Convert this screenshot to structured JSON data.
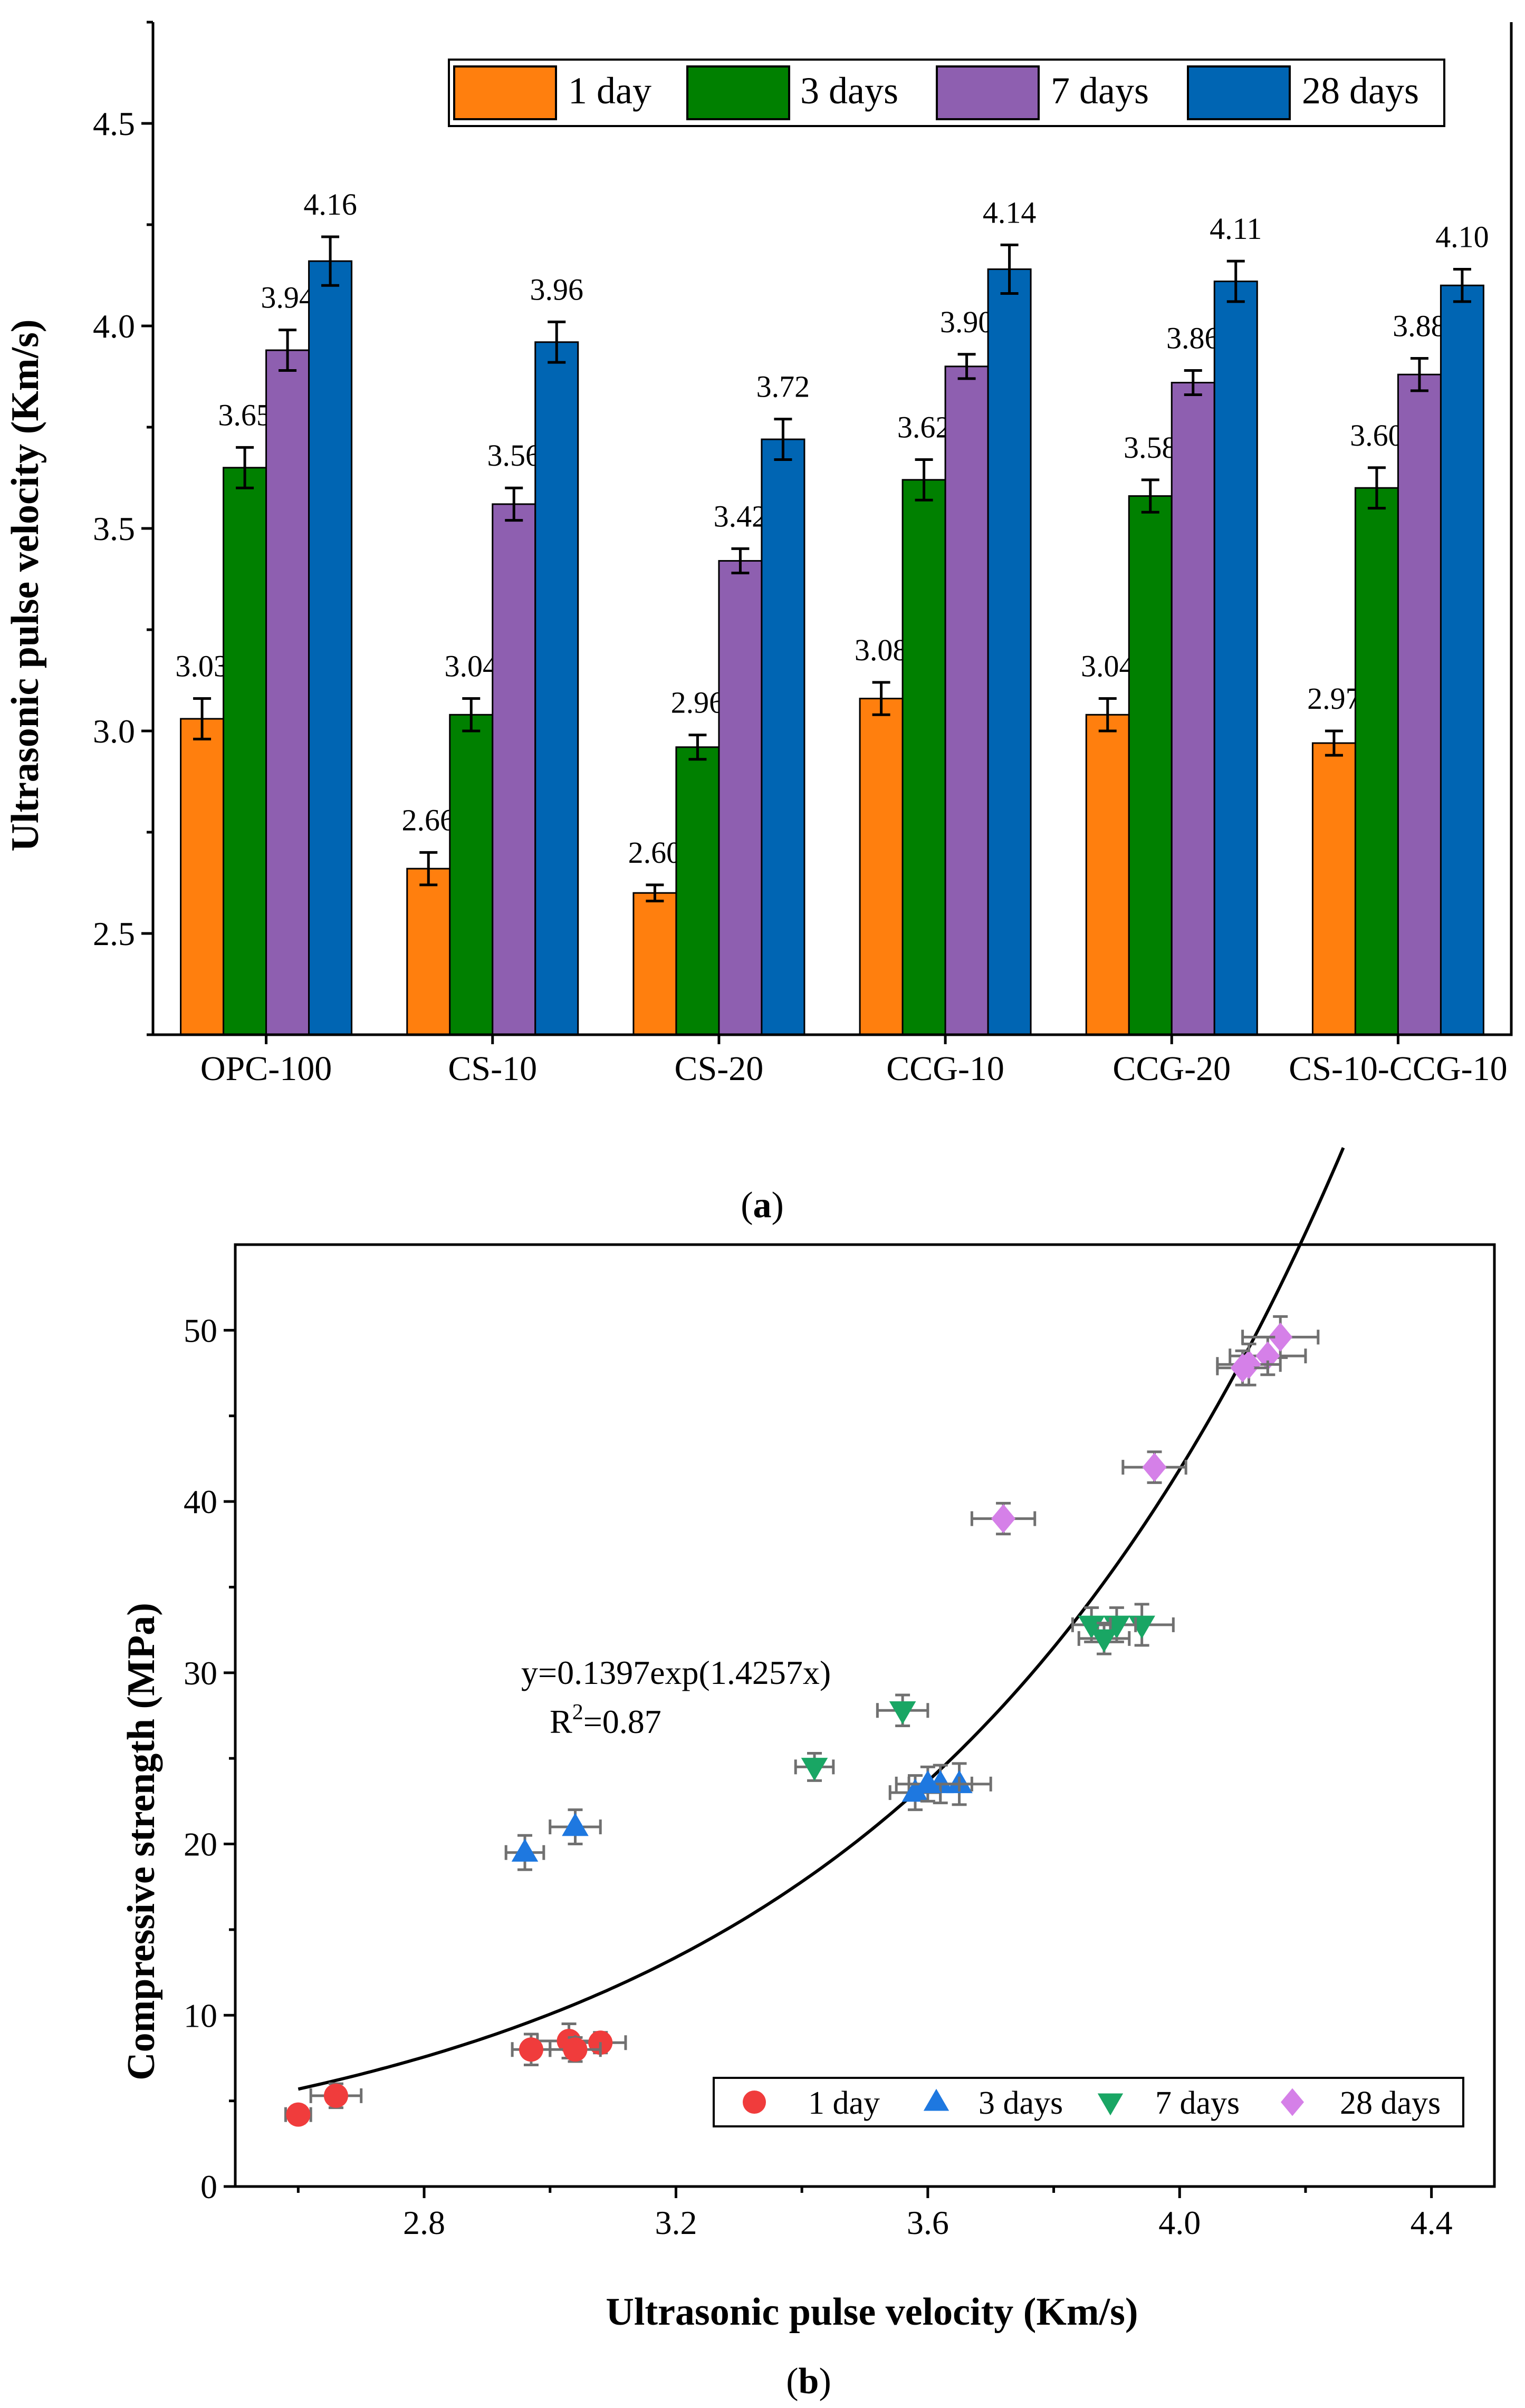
{
  "chart_data": [
    {
      "type": "bar",
      "panel_label": "a",
      "ylabel": "Ultrasonic pulse velocity (Km/s)",
      "xlabel": "",
      "ylim": [
        2.25,
        4.75
      ],
      "yticks": [
        "2.5",
        "3.0",
        "3.5",
        "4.0",
        "4.5"
      ],
      "categories": [
        "OPC-100",
        "CS-10",
        "CS-20",
        "CCG-10",
        "CCG-20",
        "CS-10-CCG-10"
      ],
      "legend_position": "top-right",
      "series": [
        {
          "name": "1 day",
          "color": "#FF7F0E",
          "values": [
            3.03,
            2.66,
            2.6,
            3.08,
            3.04,
            2.97
          ],
          "labels": [
            "3.03",
            "2.66",
            "2.60",
            "3.08",
            "3.04",
            "2.97"
          ],
          "errors": [
            0.05,
            0.04,
            0.02,
            0.04,
            0.04,
            0.03
          ]
        },
        {
          "name": "3 days",
          "color": "#008000",
          "values": [
            3.65,
            3.04,
            2.96,
            3.62,
            3.58,
            3.6
          ],
          "labels": [
            "3.65",
            "3.04",
            "2.96",
            "3.62",
            "3.58",
            "3.60"
          ],
          "errors": [
            0.05,
            0.04,
            0.03,
            0.05,
            0.04,
            0.05
          ]
        },
        {
          "name": "7 days",
          "color": "#8E5FB0",
          "values": [
            3.94,
            3.56,
            3.42,
            3.9,
            3.86,
            3.88
          ],
          "labels": [
            "3.94",
            "3.56",
            "3.42",
            "3.90",
            "3.86",
            "3.88"
          ],
          "errors": [
            0.05,
            0.04,
            0.03,
            0.03,
            0.03,
            0.04
          ]
        },
        {
          "name": "28 days",
          "color": "#0065B3",
          "values": [
            4.16,
            3.96,
            3.72,
            4.14,
            4.11,
            4.1
          ],
          "labels": [
            "4.16",
            "3.96",
            "3.72",
            "4.14",
            "4.11",
            "4.10"
          ],
          "errors": [
            0.06,
            0.05,
            0.05,
            0.06,
            0.05,
            0.04
          ]
        }
      ]
    },
    {
      "type": "scatter",
      "panel_label": "b",
      "xlabel": "Ultrasonic pulse velocity (Km/s)",
      "ylabel": "Compressive strength (MPa)",
      "xlim": [
        2.5,
        4.5
      ],
      "ylim": [
        0,
        55
      ],
      "xticks": [
        "2.8",
        "3.2",
        "3.6",
        "4.0",
        "4.4"
      ],
      "yticks": [
        "0",
        "10",
        "20",
        "30",
        "40",
        "50"
      ],
      "legend_position": "bottom-right",
      "fit": {
        "equation": "y=0.1397exp(1.4257x)",
        "r2_prefix": "R",
        "r2_sup": "2",
        "r2_value": "=0.87",
        "a": 0.1397,
        "b": 1.4257,
        "x_range": [
          2.6,
          4.26
        ]
      },
      "series": [
        {
          "name": "1 day",
          "marker": "circle",
          "color": "#F03C3C",
          "x": [
            3.03,
            2.66,
            2.6,
            3.08,
            3.04,
            2.97
          ],
          "y": [
            8.5,
            5.3,
            4.2,
            8.4,
            8.0,
            8.0
          ],
          "xerr": [
            0.05,
            0.04,
            0.02,
            0.04,
            0.04,
            0.03
          ],
          "yerr": [
            1.0,
            0.7,
            0.5,
            0.6,
            0.7,
            0.9
          ]
        },
        {
          "name": "3 days",
          "marker": "triangle-up",
          "color": "#1E78E0",
          "x": [
            3.65,
            3.04,
            2.96,
            3.62,
            3.58,
            3.6
          ],
          "y": [
            23.5,
            21.0,
            19.5,
            23.5,
            23.0,
            23.5
          ],
          "xerr": [
            0.05,
            0.04,
            0.03,
            0.05,
            0.04,
            0.05
          ],
          "yerr": [
            1.2,
            1.0,
            1.0,
            1.1,
            1.0,
            1.0
          ]
        },
        {
          "name": "7 days",
          "marker": "triangle-down",
          "color": "#19A664",
          "x": [
            3.94,
            3.56,
            3.42,
            3.9,
            3.86,
            3.88
          ],
          "y": [
            32.8,
            27.8,
            24.5,
            32.8,
            32.8,
            32.0
          ],
          "xerr": [
            0.05,
            0.04,
            0.03,
            0.03,
            0.03,
            0.04
          ],
          "yerr": [
            1.2,
            0.9,
            0.8,
            1.0,
            1.0,
            0.9
          ]
        },
        {
          "name": "28 days",
          "marker": "diamond",
          "color": "#D580E8",
          "x": [
            4.16,
            3.96,
            3.72,
            4.14,
            4.11,
            4.1
          ],
          "y": [
            49.6,
            42.0,
            39.0,
            48.5,
            48.0,
            47.8
          ],
          "xerr": [
            0.06,
            0.05,
            0.05,
            0.06,
            0.05,
            0.04
          ],
          "yerr": [
            1.2,
            0.9,
            0.9,
            1.1,
            1.2,
            1.0
          ]
        }
      ]
    }
  ]
}
